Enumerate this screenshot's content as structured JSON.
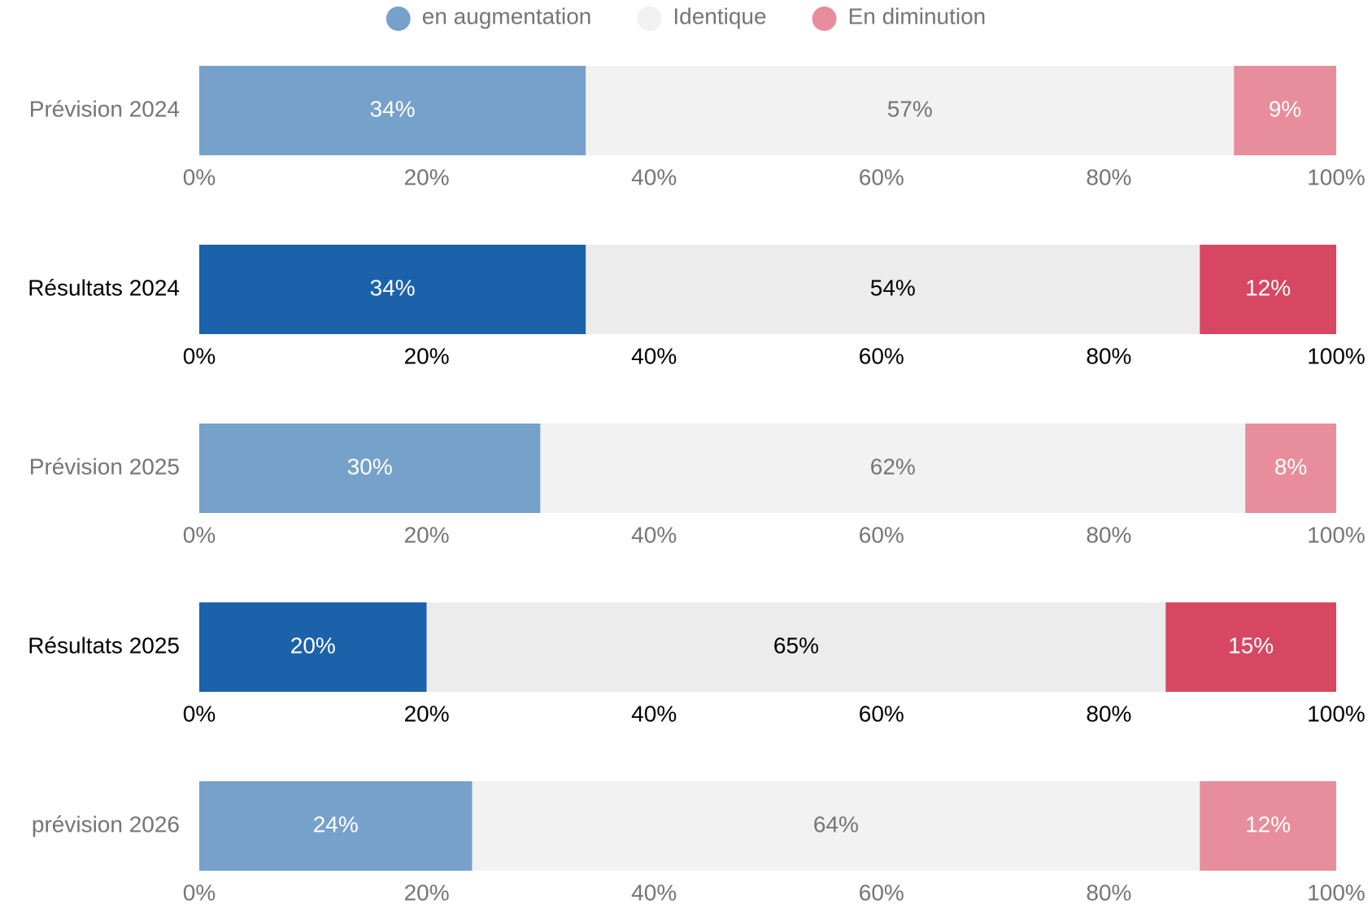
{
  "chart_data": {
    "type": "stacked-bar-horizontal",
    "categories": [
      "Prévision 2024",
      "Résultats 2024",
      "Prévision 2025",
      "Résultats 2025",
      "prévision 2026"
    ],
    "category_colors": [
      "#757575",
      "#000000",
      "#757575",
      "#000000",
      "#757575"
    ],
    "series": [
      {
        "name": "en augmentation",
        "color": "#75a1cb",
        "colors": [
          "#75a1cb",
          "#1c62aa",
          "#75a1cb",
          "#1c62aa",
          "#75a1cb"
        ],
        "label_colors": [
          "#ffffff",
          "#ffffff",
          "#ffffff",
          "#ffffff",
          "#ffffff"
        ],
        "values": [
          34,
          34,
          30,
          20,
          24
        ],
        "value_labels": [
          "34%",
          "34%",
          "30%",
          "20%",
          "24%"
        ]
      },
      {
        "name": "Identique",
        "color": "#f2f2f2",
        "colors": [
          "#f2f2f2",
          "#ececec",
          "#f2f2f2",
          "#ececec",
          "#f2f2f2"
        ],
        "label_colors": [
          "#757575",
          "#000000",
          "#757575",
          "#000000",
          "#757575"
        ],
        "values": [
          57,
          54,
          62,
          65,
          64
        ],
        "value_labels": [
          "57%",
          "54%",
          "62%",
          "65%",
          "64%"
        ]
      },
      {
        "name": "En diminution",
        "color": "#e78d9b",
        "colors": [
          "#e78d9b",
          "#d84762",
          "#e78d9b",
          "#d84762",
          "#e78d9b"
        ],
        "label_colors": [
          "#ffffff",
          "#ffffff",
          "#ffffff",
          "#ffffff",
          "#ffffff"
        ],
        "values": [
          9,
          12,
          8,
          15,
          12
        ],
        "value_labels": [
          "9%",
          "12%",
          "8%",
          "15%",
          "12%"
        ]
      }
    ],
    "xlim": [
      0,
      100
    ],
    "xticks": [
      {
        "value": 0,
        "label": "0%"
      },
      {
        "value": 20,
        "label": "20%"
      },
      {
        "value": 40,
        "label": "40%"
      },
      {
        "value": 60,
        "label": "60%"
      },
      {
        "value": 80,
        "label": "80%"
      },
      {
        "value": 100,
        "label": "100%"
      }
    ],
    "legend": "top"
  }
}
